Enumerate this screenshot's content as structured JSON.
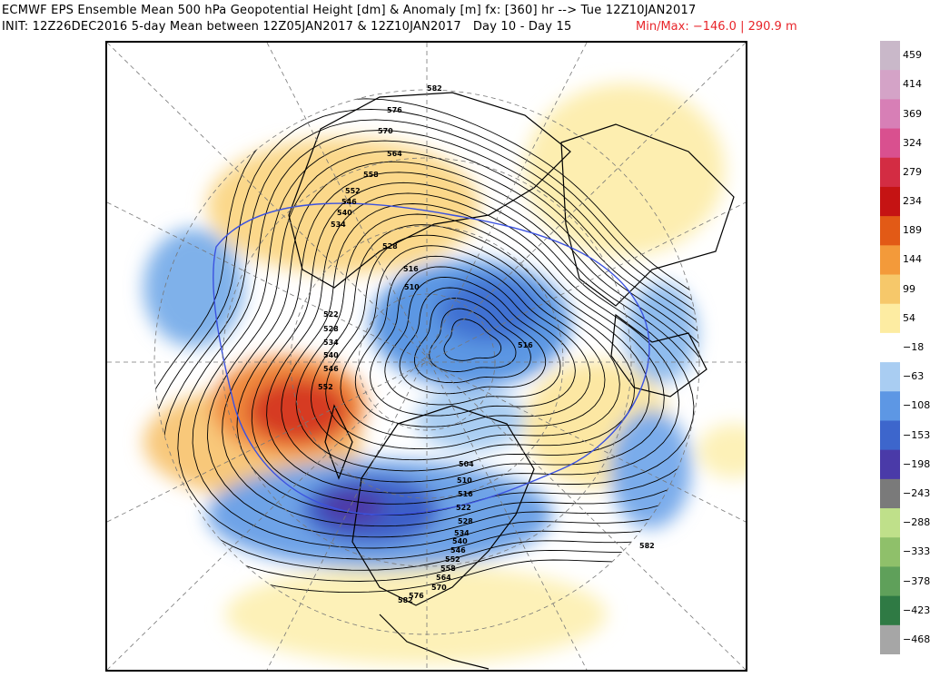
{
  "header": {
    "line1": "ECMWF EPS Ensemble Mean 500 hPa Geopotential Height [dm] & Anomaly [m] fx: [360] hr --> Tue 12Z10JAN2017",
    "line2": "INIT: 12Z26DEC2016 5-day Mean between 12Z05JAN2017 & 12Z10JAN2017   Day 10 - Day 15",
    "minmax": "Min/Max: −146.0 | 290.9 m"
  },
  "colorbar": {
    "labels": [
      "459",
      "414",
      "369",
      "324",
      "279",
      "234",
      "189",
      "144",
      "99",
      "54",
      "−18",
      "−63",
      "−108",
      "−153",
      "−198",
      "−243",
      "−288",
      "−333",
      "−378",
      "−423",
      "−468"
    ],
    "colors": [
      "#c9b8c9",
      "#d4a3c7",
      "#d77fb6",
      "#d9508f",
      "#d32c43",
      "#c51313",
      "#e25a16",
      "#f39a3a",
      "#f6c86a",
      "#fdeca2",
      "#ffffff",
      "#a9cdf2",
      "#5d97e4",
      "#3d66cc",
      "#4a3aa8",
      "#7a7a7a",
      "#bfe08a",
      "#8fc06a",
      "#5fa05a",
      "#2f7a44",
      "#a6a6a6"
    ]
  },
  "contour_labels": [
    {
      "t": "582"
    },
    {
      "t": "576"
    },
    {
      "t": "570"
    },
    {
      "t": "564"
    },
    {
      "t": "558"
    },
    {
      "t": "552"
    },
    {
      "t": "546"
    },
    {
      "t": "540"
    },
    {
      "t": "534"
    },
    {
      "t": "528"
    },
    {
      "t": "516"
    },
    {
      "t": "510"
    },
    {
      "t": "522"
    },
    {
      "t": "528"
    },
    {
      "t": "534"
    },
    {
      "t": "540"
    },
    {
      "t": "546"
    },
    {
      "t": "552"
    },
    {
      "t": "504"
    },
    {
      "t": "510"
    },
    {
      "t": "516"
    },
    {
      "t": "522"
    },
    {
      "t": "528"
    },
    {
      "t": "534"
    },
    {
      "t": "540"
    },
    {
      "t": "546"
    },
    {
      "t": "552"
    },
    {
      "t": "558"
    },
    {
      "t": "564"
    },
    {
      "t": "570"
    },
    {
      "t": "576"
    },
    {
      "t": "582"
    },
    {
      "t": "582"
    },
    {
      "t": "516"
    }
  ]
}
